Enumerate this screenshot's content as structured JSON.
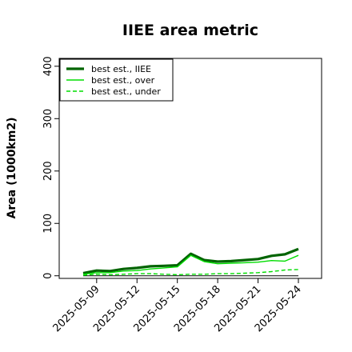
{
  "chart_data": {
    "type": "line",
    "title": "IIEE area metric",
    "xlabel": "",
    "ylabel": "Area (1000km2)",
    "ylim": [
      -5,
      415
    ],
    "yticks": [
      0,
      100,
      200,
      300,
      400
    ],
    "x": [
      "2025-05-08",
      "2025-05-09",
      "2025-05-10",
      "2025-05-11",
      "2025-05-12",
      "2025-05-13",
      "2025-05-14",
      "2025-05-15",
      "2025-05-16",
      "2025-05-17",
      "2025-05-18",
      "2025-05-19",
      "2025-05-20",
      "2025-05-21",
      "2025-05-22",
      "2025-05-23",
      "2025-05-24"
    ],
    "xticks": [
      "2025-05-09",
      "2025-05-12",
      "2025-05-15",
      "2025-05-18",
      "2025-05-21",
      "2025-05-24"
    ],
    "xtick_index": [
      1,
      4,
      7,
      10,
      13,
      16
    ],
    "zero_line": true,
    "grid": false,
    "legend": "top-left",
    "series": [
      {
        "name": "best est., IIEE",
        "color": "#006400",
        "width": 3.2,
        "dash": "",
        "values": [
          5,
          10,
          9,
          13,
          15,
          18,
          19,
          20,
          42,
          30,
          27,
          28,
          30,
          32,
          38,
          41,
          51
        ]
      },
      {
        "name": "best est., over",
        "color": "#00dd00",
        "width": 1.4,
        "dash": "",
        "values": [
          3,
          6,
          6,
          9,
          10,
          13,
          15,
          17,
          39,
          27,
          23,
          24,
          25,
          26,
          29,
          28,
          39
        ]
      },
      {
        "name": "best est., under",
        "color": "#00dd00",
        "width": 1.4,
        "dash": "5,3",
        "values": [
          1,
          3,
          2,
          3,
          4,
          4,
          3,
          2,
          3,
          3,
          4,
          4,
          5,
          6,
          8,
          11,
          12
        ]
      }
    ]
  }
}
